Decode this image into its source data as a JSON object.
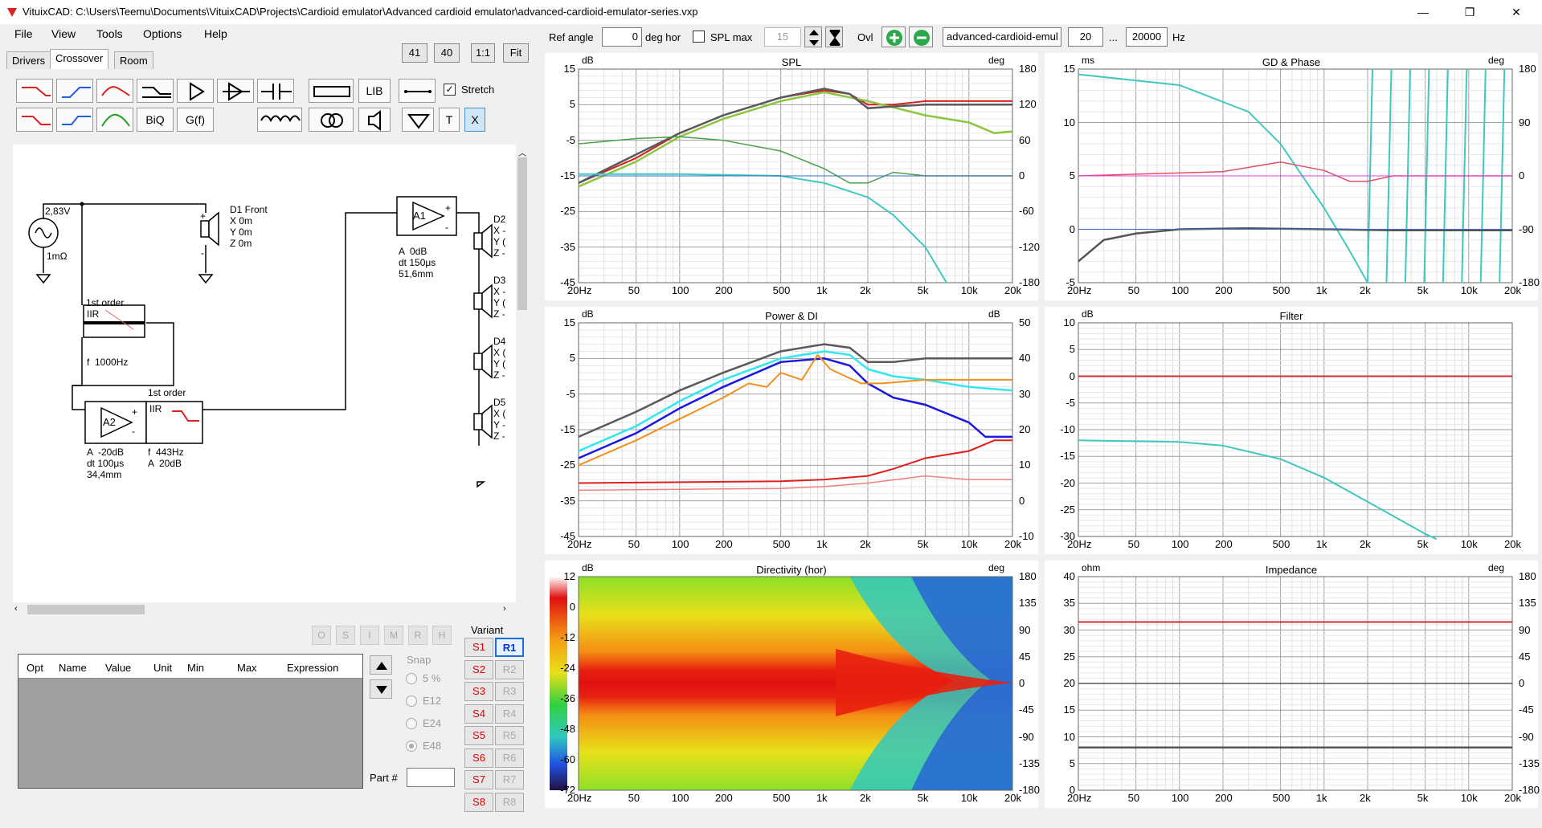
{
  "window": {
    "title": "VituixCAD: C:\\Users\\Teemu\\Documents\\VituixCAD\\Projects\\Cardioid emulator\\Advanced cardioid emulator\\advanced-cardioid-emulator-series.vxp",
    "minimize": "—",
    "maximize": "❐",
    "close": "✕"
  },
  "menu": [
    "File",
    "View",
    "Tools",
    "Options",
    "Help"
  ],
  "tabs": [
    "Drivers",
    "Crossover",
    "Room"
  ],
  "count_buttons": [
    "41",
    "40",
    "1:1",
    "Fit"
  ],
  "tools": {
    "lib": "LIB",
    "biq": "BiQ",
    "gf": "G(f)",
    "t": "T",
    "x": "X",
    "stretch": "Stretch"
  },
  "schematic": {
    "source_v": "2,83V",
    "source_r": "1mΩ",
    "d1": "D1 Front\nX 0m\nY 0m\nZ 0m",
    "a1_name": "A1",
    "a1_text": "A  0dB\ndt 150μs\n51,6mm",
    "a2_name": "A2",
    "a2_text": "A  -20dB\ndt 100μs\n34,4mm",
    "f1_title": "1st order",
    "f1_type": "IIR",
    "f1_text": "f  1000Hz",
    "f2_title": "1st order",
    "f2_type": "IIR",
    "f2_text": "f  443Hz\nA  20dB",
    "d2": "D2\nX -\nY (\nZ -",
    "d3": "D3\nX -\nY (\nZ -",
    "d4": "D4\nX (\nY (\nZ -",
    "d5": "D5\nX (\nY -\nZ -",
    "plus": "+",
    "minus": "-"
  },
  "opt_toolbar": [
    "O",
    "S",
    "I",
    "M",
    "R",
    "H"
  ],
  "opt_table": {
    "columns": [
      "Opt",
      "Name",
      "Value",
      "Unit",
      "Min",
      "Max",
      "Expression"
    ]
  },
  "snap": {
    "label": "Snap",
    "options": [
      "5 %",
      "E12",
      "E24",
      "E48"
    ]
  },
  "part_label": "Part #",
  "variant": {
    "label": "Variant",
    "s": [
      "S1",
      "S2",
      "S3",
      "S4",
      "S5",
      "S6",
      "S7",
      "S8"
    ],
    "r": [
      "R1",
      "R2",
      "R3",
      "R4",
      "R5",
      "R6",
      "R7",
      "R8"
    ]
  },
  "toprow": {
    "ref_angle_label": "Ref angle",
    "ref_angle_value": "0",
    "deg_hor": "deg hor",
    "spl_max_label": "SPL max",
    "spl_max_value": "15",
    "ovl": "Ovl",
    "overlay_name": "advanced-cardioid-emul",
    "fmin": "20",
    "dots": "...",
    "fmax": "20000",
    "hz": "Hz"
  },
  "freq_ticks": [
    "20Hz",
    "50",
    "100",
    "200",
    "500",
    "1k",
    "2k",
    "5k",
    "10k",
    "20k"
  ],
  "panels": {
    "spl": {
      "title": "SPL",
      "left_unit": "dB",
      "right_unit": "deg",
      "left_ticks": [
        "15",
        "5",
        "-5",
        "-15",
        "-25",
        "-35",
        "-45"
      ],
      "right_ticks": [
        "180",
        "120",
        "60",
        "0",
        "-60",
        "-120",
        "-180"
      ]
    },
    "gd": {
      "title": "GD & Phase",
      "left_unit": "ms",
      "right_unit": "deg",
      "left_ticks": [
        "15",
        "10",
        "5",
        "0",
        "-5"
      ],
      "right_ticks": [
        "180",
        "90",
        "0",
        "-90",
        "-180"
      ]
    },
    "power": {
      "title": "Power & DI",
      "left_unit": "dB",
      "right_unit": "dB",
      "left_ticks": [
        "15",
        "5",
        "-5",
        "-15",
        "-25",
        "-35",
        "-45"
      ],
      "right_ticks": [
        "50",
        "40",
        "30",
        "20",
        "10",
        "0",
        "-10"
      ]
    },
    "filter": {
      "title": "Filter",
      "left_unit": "dB",
      "left_ticks": [
        "10",
        "5",
        "0",
        "-5",
        "-10",
        "-15",
        "-20",
        "-25",
        "-30"
      ]
    },
    "directivity": {
      "title": "Directivity (hor)",
      "left_unit": "dB",
      "right_unit": "deg",
      "left_ticks": [
        "12",
        "0",
        "-12",
        "-24",
        "-36",
        "-48",
        "-60",
        "-72"
      ],
      "right_ticks": [
        "180",
        "135",
        "90",
        "45",
        "0",
        "-45",
        "-90",
        "-135",
        "-180"
      ]
    },
    "impedance": {
      "title": "Impedance",
      "left_unit": "ohm",
      "right_unit": "deg",
      "left_ticks": [
        "40",
        "35",
        "30",
        "25",
        "20",
        "15",
        "10",
        "5",
        "0"
      ],
      "right_ticks": [
        "180",
        "135",
        "90",
        "45",
        "0",
        "-45",
        "-90",
        "-135",
        "-180"
      ]
    }
  },
  "colors": {
    "spl_total": "#5a5a5a",
    "spl_red": "#d42020",
    "spl_green": "#8cc63f",
    "spl_darkgreen": "#4aa04a",
    "cyan": "#40c8c0",
    "power_cyan": "#30e8f0",
    "power_blue": "#1818e0",
    "power_orange": "#f09020",
    "filter_red": "#d03030",
    "magenta": "#e040e0"
  }
}
